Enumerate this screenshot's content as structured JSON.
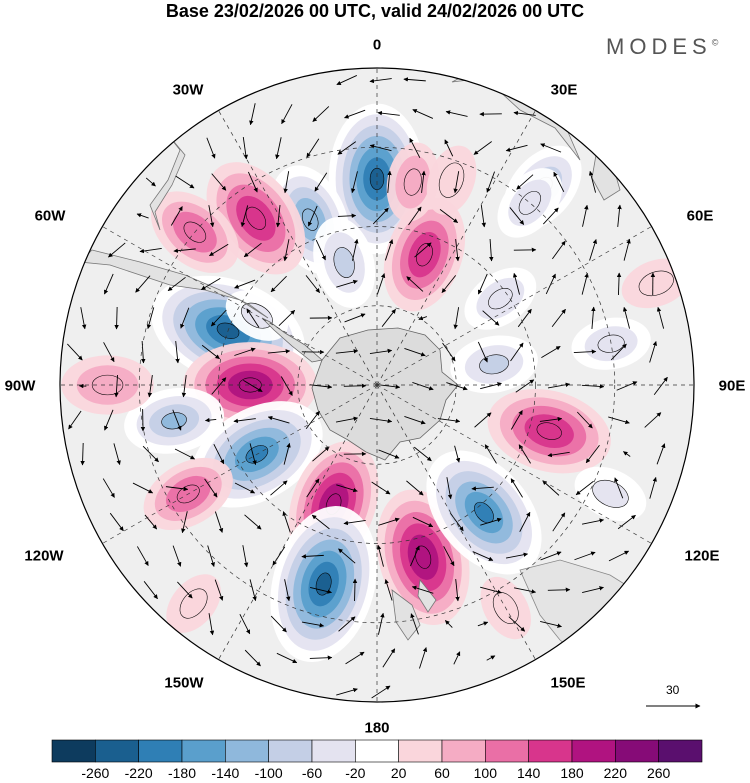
{
  "title": "Base 23/02/2026 00 UTC, valid 24/02/2026 00 UTC",
  "brand": "MODES",
  "brand_mark": "©",
  "longitude_labels": {
    "n0": "0",
    "w30": "30W",
    "e30": "30E",
    "w60": "60W",
    "e60": "60E",
    "w90": "90W",
    "e90": "90E",
    "w120": "120W",
    "e120": "120E",
    "w150": "150W",
    "e150": "150E",
    "s180": "180"
  },
  "vector_scale": "30",
  "colorbar": {
    "ticks": [
      "-260",
      "-220",
      "-180",
      "-140",
      "-100",
      "-60",
      "-20",
      "20",
      "60",
      "100",
      "140",
      "180",
      "220",
      "260"
    ],
    "colors": [
      "#0d3b5e",
      "#1a5f8f",
      "#2f7fb5",
      "#5a9fcc",
      "#8fb8dc",
      "#c4cfe6",
      "#e4e3f0",
      "#ffffff",
      "#fad6dc",
      "#f5acc4",
      "#ea6fa6",
      "#d8358c",
      "#b01380",
      "#860b77",
      "#5a0f6e"
    ]
  },
  "colors": {
    "land": "#e6e6e6",
    "coast": "#666666",
    "grid": "#333333"
  },
  "map_data": {
    "anomaly_cells": [
      {
        "lon": 0,
        "lat": -38,
        "value": -230
      },
      {
        "lon": -22,
        "lat": -45,
        "value": -140
      },
      {
        "lon": 55,
        "lat": -52,
        "value": -60
      },
      {
        "lon": -36,
        "lat": -38,
        "value": 170
      },
      {
        "lon": -50,
        "lat": -30,
        "value": 110
      },
      {
        "lon": -15,
        "lat": -58,
        "value": -90
      },
      {
        "lon": 20,
        "lat": -55,
        "value": 150
      },
      {
        "lon": 10,
        "lat": -38,
        "value": 60
      },
      {
        "lon": 20,
        "lat": -35,
        "value": 40
      },
      {
        "lon": 40,
        "lat": -25,
        "value": -100
      },
      {
        "lon": 80,
        "lat": -30,
        "value": -60
      },
      {
        "lon": 40,
        "lat": -30,
        "value": -60
      },
      {
        "lon": -70,
        "lat": -50,
        "value": -250
      },
      {
        "lon": -90,
        "lat": -58,
        "value": 190
      },
      {
        "lon": -100,
        "lat": -38,
        "value": -110
      },
      {
        "lon": -90,
        "lat": -22,
        "value": 90
      },
      {
        "lon": -120,
        "lat": -55,
        "value": -210
      },
      {
        "lon": -160,
        "lat": -58,
        "value": 180
      },
      {
        "lon": -120,
        "lat": -35,
        "value": 100
      },
      {
        "lon": -165,
        "lat": -38,
        "value": -250
      },
      {
        "lon": 165,
        "lat": -45,
        "value": 200
      },
      {
        "lon": 140,
        "lat": -48,
        "value": -210
      },
      {
        "lon": 105,
        "lat": -45,
        "value": 170
      },
      {
        "lon": 80,
        "lat": -60,
        "value": -80
      },
      {
        "lon": 115,
        "lat": -25,
        "value": -50
      },
      {
        "lon": 150,
        "lat": -25,
        "value": 30
      },
      {
        "lon": 70,
        "lat": -15,
        "value": 40
      },
      {
        "lon": -140,
        "lat": -18,
        "value": 30
      },
      {
        "lon": -60,
        "lat": -55,
        "value": -30
      }
    ]
  }
}
